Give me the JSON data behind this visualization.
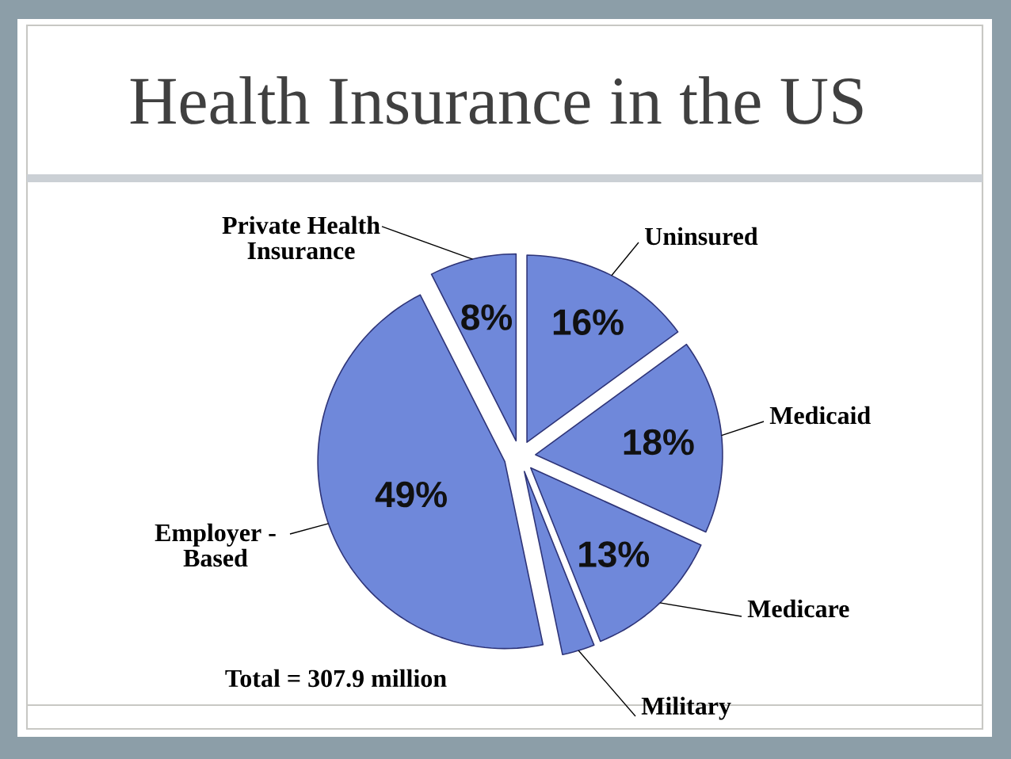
{
  "chart_data": {
    "type": "pie",
    "title": "Health Insurance in the US",
    "categories": [
      "Uninsured",
      "Medicaid",
      "Medicare",
      "Military",
      "Employer - Based",
      "Private Health Insurance"
    ],
    "values": [
      16,
      18,
      13,
      3,
      49,
      8
    ],
    "value_labels": [
      "16%",
      "18%",
      "13%",
      null,
      "49%",
      "8%"
    ],
    "colors": [
      "#6f88da",
      "#6f88da",
      "#6f88da",
      "#6f88da",
      "#6f88da",
      "#6f88da"
    ],
    "annotations": [
      "Total = 307.9 million"
    ]
  }
}
